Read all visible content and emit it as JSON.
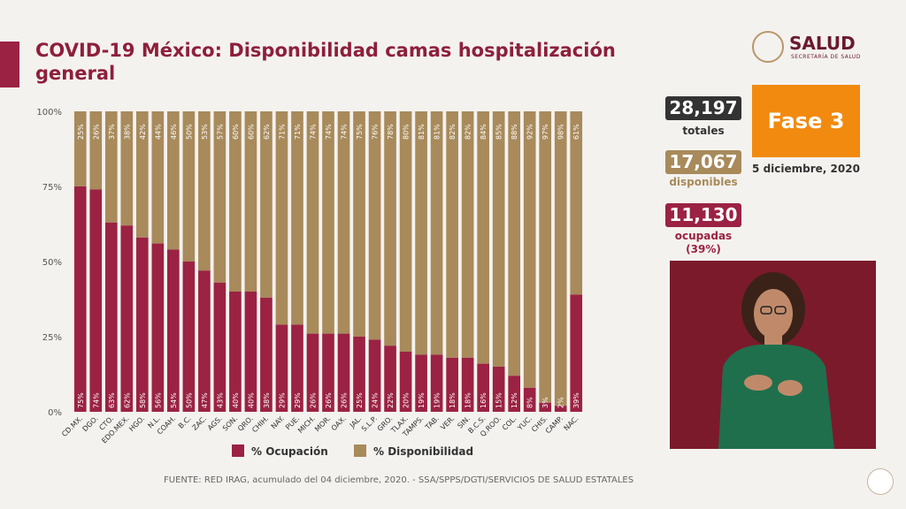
{
  "title": "COVID-19 México: Disponibilidad camas hospitalización general",
  "logo": {
    "name": "SALUD",
    "subtitle": "SECRETARÍA DE SALUD"
  },
  "stats": {
    "totales_value": "28,197",
    "totales_label": "totales",
    "disponibles_value": "17,067",
    "disponibles_label": "disponibles",
    "ocupadas_value": "11,130",
    "ocupadas_label": "ocupadas",
    "ocupadas_pct": "(39%)"
  },
  "fase": "Fase 3",
  "fecha": "5 diciembre, 2020",
  "source": "FUENTE: RED IRAG, acumulado del 04 diciembre, 2020. -  SSA/SPPS/DGTI/SERVICIOS DE SALUD ESTATALES",
  "colors": {
    "ocupacion": "#9b2242",
    "disponibilidad": "#a88a5b",
    "fase": "#f28a10"
  },
  "chart_data": {
    "type": "bar",
    "stacked": true,
    "percent_labels": true,
    "ylim": [
      0,
      100
    ],
    "yticks": [
      "0%",
      "25%",
      "50%",
      "75%",
      "100%"
    ],
    "legend_position": "bottom",
    "categories": [
      "CD.MX.",
      "DGO.",
      "CTO.",
      "EDO.MEX.",
      "HGO.",
      "N.L.",
      "COAH.",
      "B.C.",
      "ZAC.",
      "AGS.",
      "SON.",
      "QRO.",
      "CHIH.",
      "NAY.",
      "PUE.",
      "MICH.",
      "MOR.",
      "OAX.",
      "JAL.",
      "S.L.P.",
      "GRO.",
      "TLAX.",
      "TAMPS.",
      "TAB.",
      "VER.",
      "SIN.",
      "B.C.S.",
      "Q.ROO.",
      "COL.",
      "YUC.",
      "CHIS.",
      "CAMP.",
      "NAC."
    ],
    "series": [
      {
        "name": "% Ocupación",
        "values": [
          75,
          74,
          63,
          62,
          58,
          56,
          54,
          50,
          47,
          43,
          40,
          40,
          38,
          29,
          29,
          26,
          26,
          26,
          25,
          24,
          22,
          20,
          19,
          19,
          18,
          18,
          16,
          15,
          12,
          8,
          3,
          2,
          39
        ]
      },
      {
        "name": "% Disponibilidad",
        "values": [
          25,
          26,
          37,
          38,
          42,
          44,
          46,
          50,
          53,
          57,
          60,
          60,
          62,
          71,
          71,
          74,
          74,
          74,
          75,
          76,
          78,
          80,
          81,
          81,
          82,
          82,
          84,
          85,
          88,
          92,
          97,
          98,
          61
        ]
      }
    ]
  }
}
